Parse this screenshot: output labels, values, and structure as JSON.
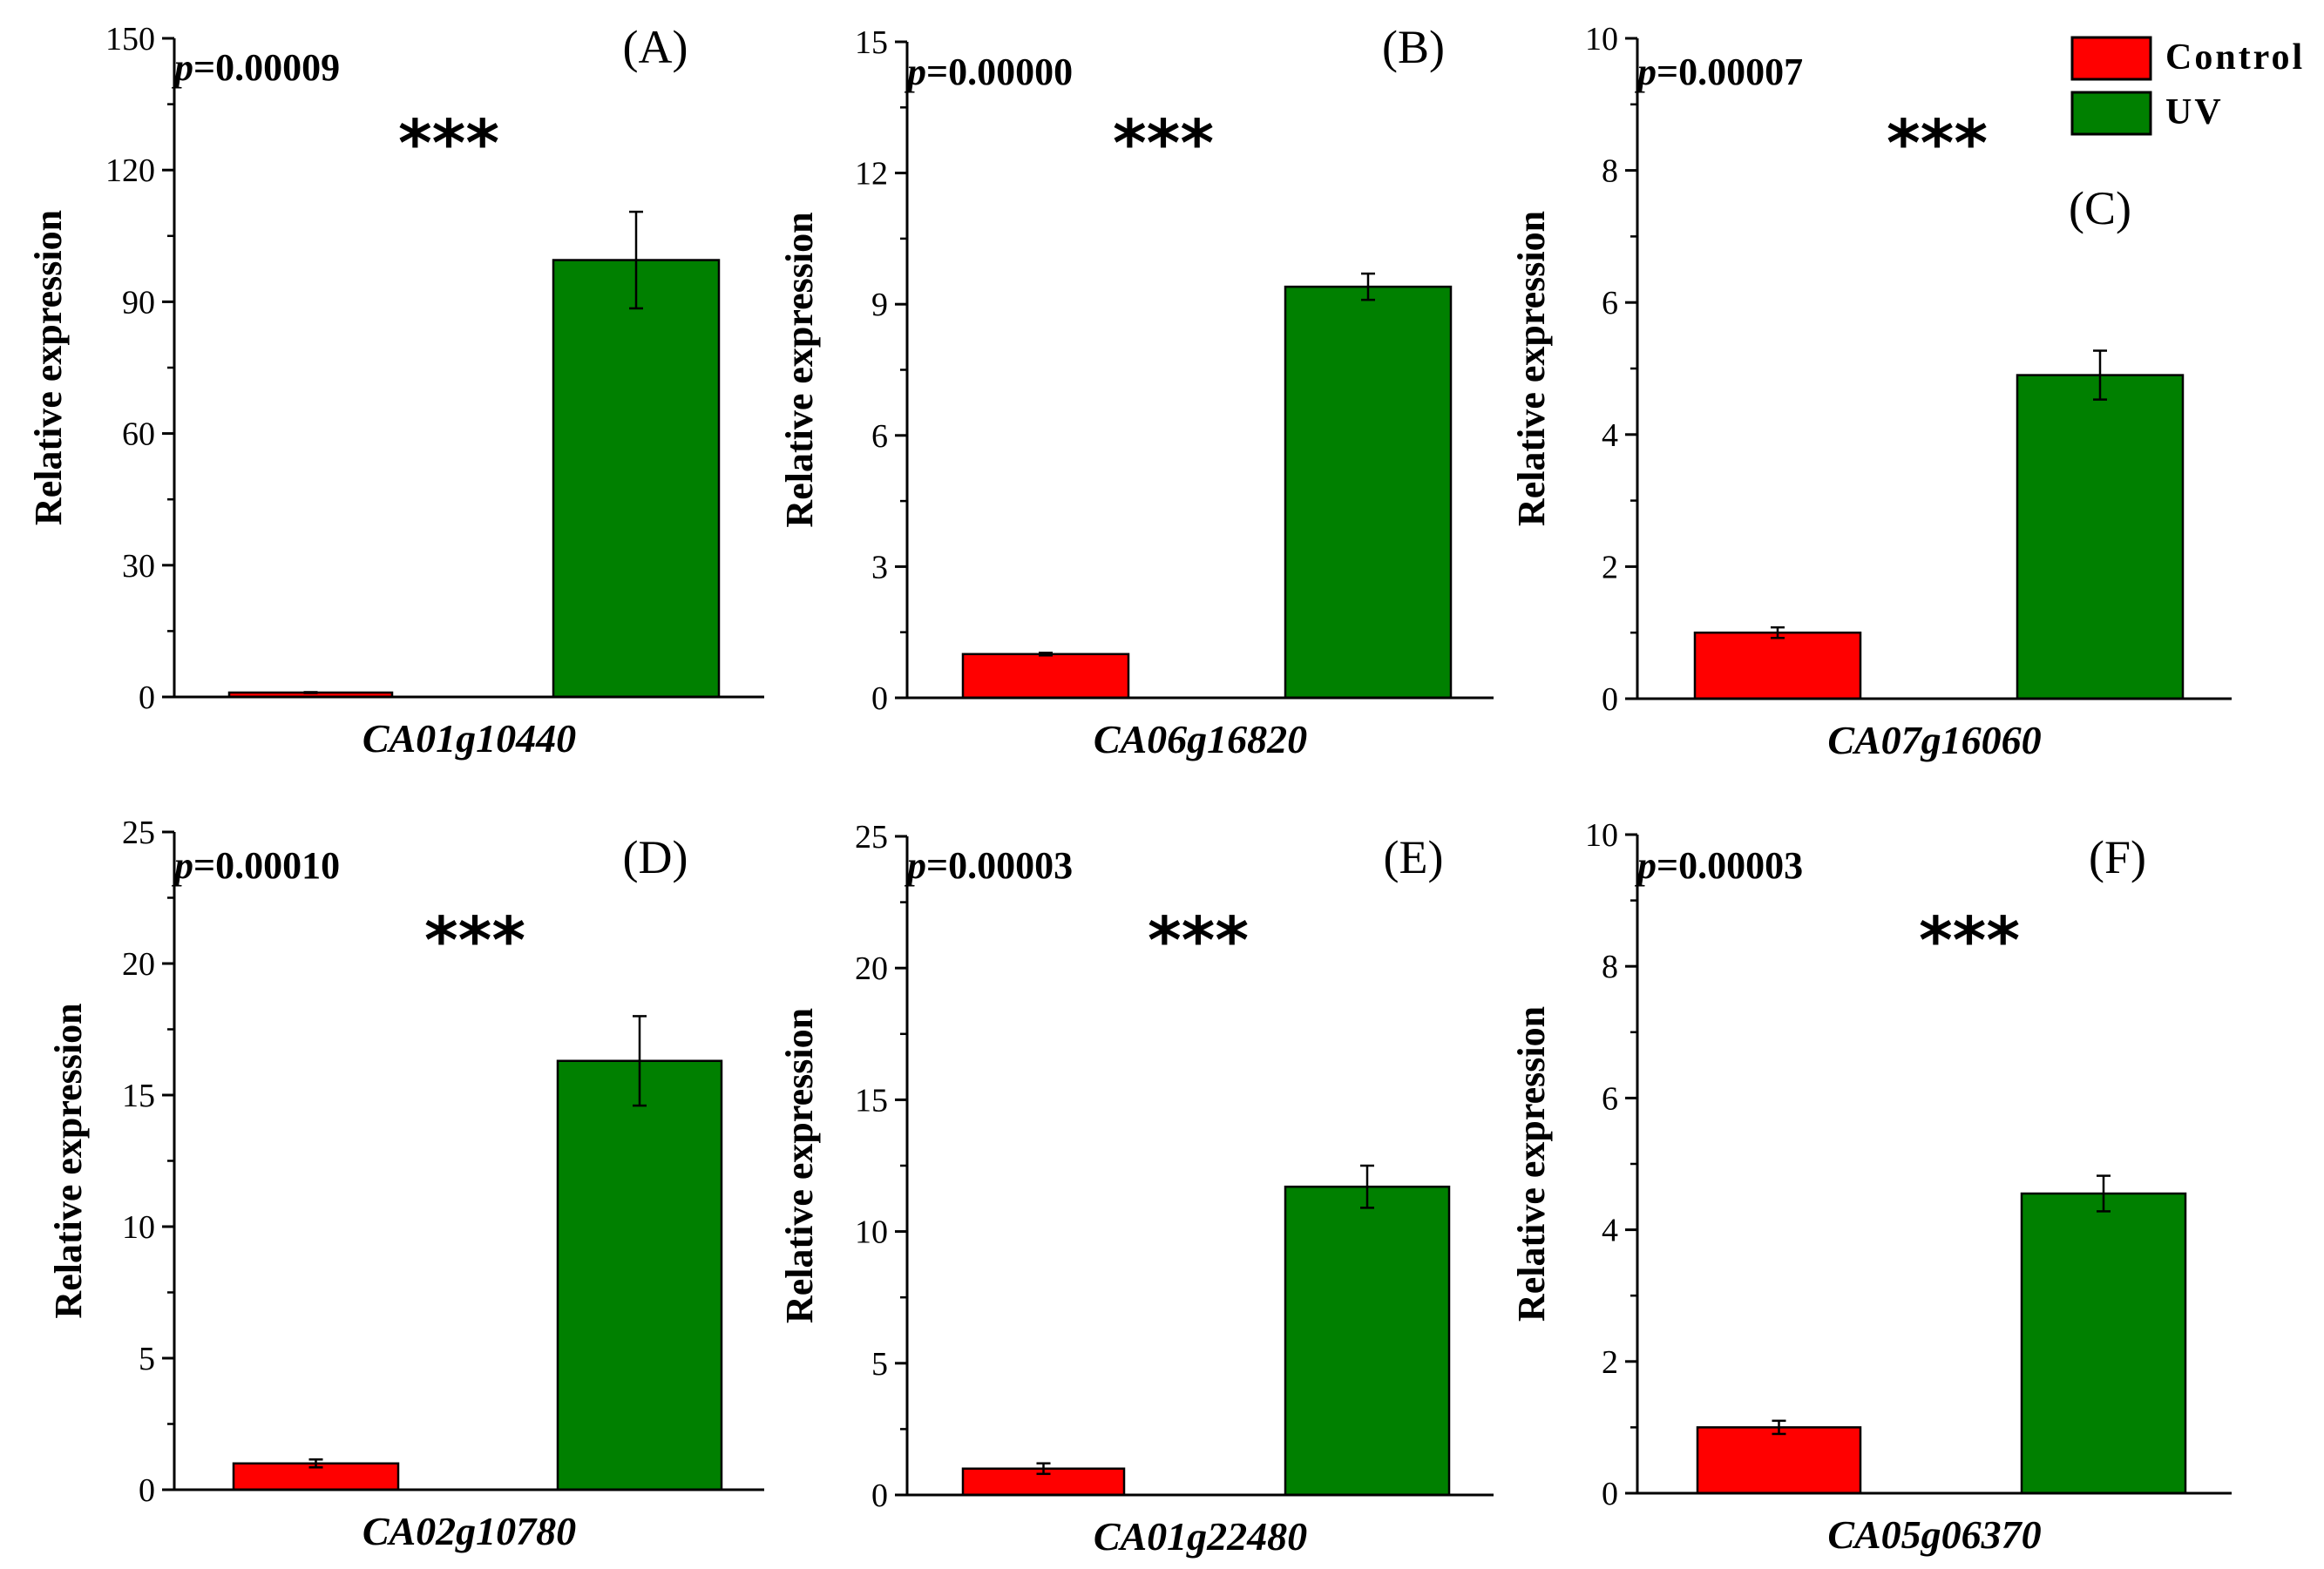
{
  "colors": {
    "control": "#ff0000",
    "uv": "#008000",
    "axis": "#000000"
  },
  "legend": {
    "entries": [
      {
        "label": "Control",
        "color": "#ff0000"
      },
      {
        "label": "UV",
        "color": "#008000"
      }
    ],
    "placement": "top-right"
  },
  "chart_data": [
    {
      "type": "bar",
      "panel_label": "(A)",
      "title": "",
      "xlabel": "CA01g10440",
      "ylabel": "Relative expression",
      "ylim": [
        0,
        150
      ],
      "yticks": [
        0,
        30,
        60,
        90,
        120,
        150
      ],
      "p_symbol": "p",
      "p_value": "=0.00009",
      "significance": "***",
      "categories": [
        "Control",
        "UV"
      ],
      "series": [
        {
          "name": "Relative expression",
          "values": [
            1.0,
            99.5
          ],
          "errors": [
            0.1,
            11
          ]
        }
      ]
    },
    {
      "type": "bar",
      "panel_label": "(B)",
      "title": "",
      "xlabel": "CA06g16820",
      "ylabel": "Relative expression",
      "ylim": [
        0,
        15
      ],
      "yticks": [
        0,
        3,
        6,
        9,
        12,
        15
      ],
      "p_symbol": "p",
      "p_value": "=0.00000",
      "significance": "***",
      "categories": [
        "Control",
        "UV"
      ],
      "series": [
        {
          "name": "Relative expression",
          "values": [
            1.0,
            9.4
          ],
          "errors": [
            0.03,
            0.3
          ]
        }
      ]
    },
    {
      "type": "bar",
      "panel_label": "(C)",
      "title": "",
      "xlabel": "CA07g16060",
      "ylabel": "Relative expression",
      "ylim": [
        0,
        10
      ],
      "yticks": [
        0,
        2,
        4,
        6,
        8,
        10
      ],
      "p_symbol": "p",
      "p_value": "=0.00007",
      "significance": "***",
      "categories": [
        "Control",
        "UV"
      ],
      "series": [
        {
          "name": "Relative expression",
          "values": [
            1.0,
            4.9
          ],
          "errors": [
            0.08,
            0.37
          ]
        }
      ]
    },
    {
      "type": "bar",
      "panel_label": "(D)",
      "title": "",
      "xlabel": "CA02g10780",
      "ylabel": "Relative expression",
      "ylim": [
        0,
        25
      ],
      "yticks": [
        0,
        5,
        10,
        15,
        20,
        25
      ],
      "p_symbol": "p",
      "p_value": "=0.00010",
      "significance": "***",
      "categories": [
        "Control",
        "UV"
      ],
      "series": [
        {
          "name": "Relative expression",
          "values": [
            1.0,
            16.3
          ],
          "errors": [
            0.15,
            1.7
          ]
        }
      ]
    },
    {
      "type": "bar",
      "panel_label": "(E)",
      "title": "",
      "xlabel": "CA01g22480",
      "ylabel": "Relative expression",
      "ylim": [
        0,
        25
      ],
      "yticks": [
        0,
        5,
        10,
        15,
        20,
        25
      ],
      "p_symbol": "p",
      "p_value": "=0.00003",
      "significance": "***",
      "categories": [
        "Control",
        "UV"
      ],
      "series": [
        {
          "name": "Relative expression",
          "values": [
            1.0,
            11.7
          ],
          "errors": [
            0.2,
            0.8
          ]
        }
      ]
    },
    {
      "type": "bar",
      "panel_label": "(F)",
      "title": "",
      "xlabel": "CA05g06370",
      "ylabel": "Relative expression",
      "ylim": [
        0,
        10
      ],
      "yticks": [
        0,
        2,
        4,
        6,
        8,
        10
      ],
      "p_symbol": "p",
      "p_value": "=0.00003",
      "significance": "***",
      "categories": [
        "Control",
        "UV"
      ],
      "series": [
        {
          "name": "Relative expression",
          "values": [
            1.0,
            4.55
          ],
          "errors": [
            0.1,
            0.27
          ]
        }
      ]
    }
  ]
}
